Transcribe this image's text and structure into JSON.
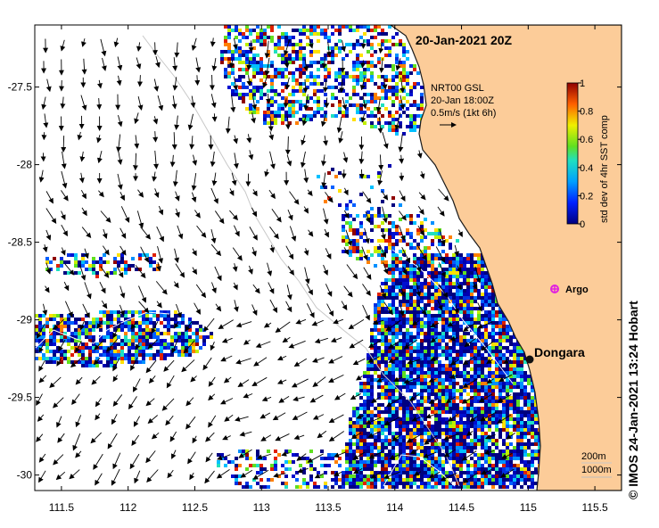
{
  "map": {
    "title": "20-Jan-2021 20Z",
    "product": "NRT00 GSL",
    "time": "20-Jan 18:00Z",
    "scale_label": "0.5m/s (1kt 6h)",
    "lon_ticks": [
      "111.5",
      "112",
      "112.5",
      "113",
      "113.5",
      "114",
      "114.5",
      "115",
      "115.5"
    ],
    "lon_values": [
      111.5,
      112,
      112.5,
      113,
      113.5,
      114,
      114.5,
      115,
      115.5
    ],
    "lat_ticks": [
      "-27.5",
      "-28",
      "-28.5",
      "-29",
      "-29.5",
      "-30"
    ],
    "lat_values": [
      -27.5,
      -28,
      -28.5,
      -29,
      -29.5,
      -30
    ],
    "lon_range": [
      111.3,
      115.7
    ],
    "lat_range": [
      -30.1,
      -27.1
    ],
    "places": [
      {
        "name": "Dongara",
        "lon": 114.93,
        "lat": -29.25,
        "marker": "black-dot"
      },
      {
        "name": "Argo",
        "lon": 115.1,
        "lat": -28.8,
        "marker": "magenta-star"
      }
    ],
    "isobaths": {
      "line1": "200m",
      "line2": "1000m"
    },
    "colorbar": {
      "label": "std dev of 4hr SST comp",
      "ticks": [
        "0",
        "0.2",
        "0.4",
        "0.6",
        "0.8",
        "1"
      ],
      "range": [
        0,
        1
      ]
    },
    "colors": {
      "land": "#fccc99",
      "coast": "#1a1a1a",
      "background": "#ffffff"
    },
    "copyright": "©  IMOS 24-Jan-2021 13:24 Hobart"
  }
}
